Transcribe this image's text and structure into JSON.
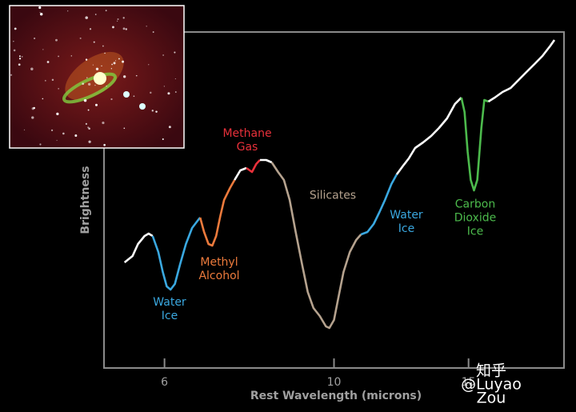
{
  "chart_data": {
    "type": "line",
    "xlabel": "Rest Wavelength (microns)",
    "ylabel": "Brightness",
    "xscale": "log",
    "xlim": [
      5,
      20
    ],
    "xticks": [
      6,
      10,
      15
    ],
    "ylim": [
      0,
      420
    ],
    "series": [
      {
        "color": "#ffffff",
        "x": [
          5.32,
          5.45,
          5.54,
          5.65,
          5.72,
          5.79
        ],
        "values": [
          132,
          140,
          155,
          165,
          168,
          165
        ]
      },
      {
        "name": "Water Ice",
        "color": "#3aa8e0",
        "x": [
          5.79,
          5.89,
          5.97,
          6.04,
          6.11,
          6.19,
          6.29,
          6.4,
          6.52,
          6.64,
          6.68
        ],
        "values": [
          165,
          145,
          120,
          102,
          98,
          105,
          130,
          155,
          175,
          185,
          188
        ]
      },
      {
        "name": "Methyl Alcohol",
        "color": "#ec7a3c",
        "x": [
          6.68,
          6.76,
          6.85,
          6.93,
          7.01,
          7.1,
          7.18,
          7.31,
          7.41
        ],
        "values": [
          188,
          170,
          155,
          153,
          165,
          190,
          210,
          225,
          235
        ]
      },
      {
        "color": "#ffffff",
        "x": [
          7.41,
          7.54,
          7.68
        ],
        "values": [
          235,
          247,
          250
        ]
      },
      {
        "name": "Methane Gas",
        "color": "#e8303a",
        "x": [
          7.68,
          7.81,
          7.91,
          8.0
        ],
        "values": [
          250,
          245,
          255,
          260
        ]
      },
      {
        "color": "#ffffff",
        "x": [
          8.0,
          8.15,
          8.29
        ],
        "values": [
          260,
          260,
          257
        ]
      },
      {
        "name": "Silicates",
        "color": "#b5a28e",
        "x": [
          8.29,
          8.45,
          8.6,
          8.75,
          8.91,
          9.08,
          9.24,
          9.4,
          9.58,
          9.76,
          9.86,
          10.0,
          10.12,
          10.29,
          10.49,
          10.69,
          10.85
        ],
        "values": [
          257,
          245,
          235,
          210,
          170,
          130,
          95,
          75,
          65,
          52,
          50,
          60,
          85,
          120,
          145,
          160,
          167
        ]
      },
      {
        "name": "Water Ice",
        "color": "#3aa8e0",
        "x": [
          10.85,
          11.06,
          11.27,
          11.47,
          11.66,
          11.89,
          12.08
        ],
        "values": [
          167,
          170,
          180,
          195,
          210,
          230,
          242
        ]
      },
      {
        "color": "#ffffff",
        "x": [
          12.08,
          12.32,
          12.53,
          12.77,
          13.08,
          13.4,
          13.72,
          14.06,
          14.4,
          14.68
        ],
        "values": [
          242,
          253,
          262,
          275,
          282,
          290,
          300,
          312,
          330,
          338
        ]
      },
      {
        "name": "Carbon Dioxide Ice",
        "color": "#4cba4c",
        "x": [
          14.68,
          14.82,
          14.96,
          15.1,
          15.25,
          15.4,
          15.59,
          15.73,
          15.92
        ],
        "values": [
          338,
          320,
          270,
          235,
          222,
          235,
          300,
          335,
          333
        ]
      },
      {
        "color": "#ffffff",
        "x": [
          15.92,
          16.23,
          16.62,
          17.03,
          17.44,
          17.86,
          18.3,
          18.74,
          19.2,
          19.43
        ],
        "values": [
          333,
          338,
          345,
          350,
          360,
          370,
          380,
          390,
          403,
          410
        ]
      }
    ],
    "watermark": "知乎 @Luyao Zou"
  }
}
